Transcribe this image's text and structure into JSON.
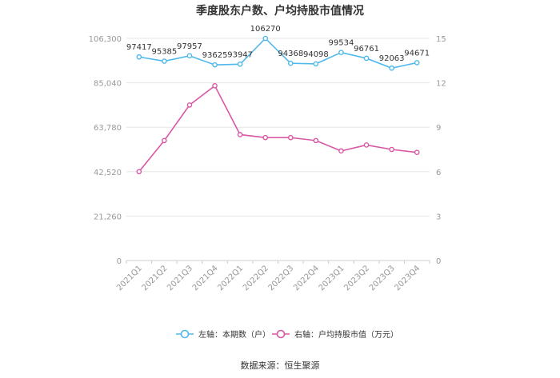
{
  "chart_data": {
    "type": "line",
    "title": "季度股东户数、户均持股市值情况",
    "categories": [
      "2021Q1",
      "2021Q2",
      "2021Q3",
      "2021Q4",
      "2022Q1",
      "2022Q2",
      "2022Q3",
      "2022Q4",
      "2023Q1",
      "2023Q2",
      "2023Q3",
      "2023Q4"
    ],
    "left_axis": {
      "ticks": [
        "0",
        "21,260",
        "42,520",
        "63,780",
        "85,040",
        "106,300"
      ],
      "ylim": [
        0,
        106300
      ]
    },
    "right_axis": {
      "ticks": [
        "0",
        "3",
        "6",
        "9",
        "12",
        "15"
      ],
      "ylim": [
        0,
        15
      ]
    },
    "series": [
      {
        "name": "左轴：本期数（户）",
        "axis": "left",
        "color": "#4fb8ec",
        "values": [
          97417,
          95385,
          97957,
          93625,
          93947,
          106270,
          94368,
          94098,
          99534,
          96761,
          92063,
          94671
        ],
        "labels": [
          "97417",
          "95385",
          "97957",
          "93625",
          "93947",
          "106270",
          "94368",
          "94098",
          "99534",
          "96761",
          "92063",
          "94671"
        ]
      },
      {
        "name": "右轴：户均持股市值（万元）",
        "axis": "right",
        "color": "#d957a5",
        "values": [
          6.0,
          8.1,
          10.5,
          11.8,
          8.5,
          8.3,
          8.3,
          8.1,
          7.4,
          7.8,
          7.5,
          7.3
        ]
      }
    ],
    "grid": true,
    "legend_position": "bottom"
  },
  "source_text": "数据来源：恒生聚源"
}
